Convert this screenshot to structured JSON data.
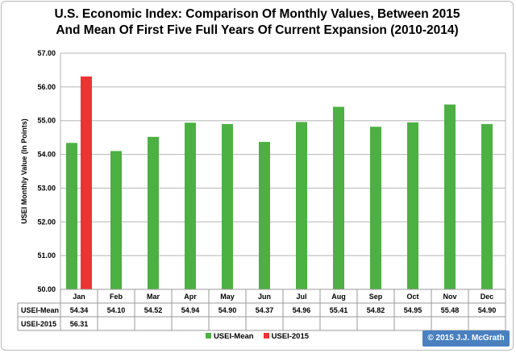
{
  "chart_data": {
    "type": "bar",
    "title_line1": "U.S. Economic Index: Comparison Of Monthly Values, Between 2015",
    "title_line2": "And Mean Of First Five Full Years Of Current Expansion (2010-2014)",
    "ylabel": "USEI Monthly Value (In Points)",
    "xlabel": "",
    "ylim": [
      50.0,
      57.0
    ],
    "yticks": [
      "57.00",
      "56.00",
      "55.00",
      "54.00",
      "53.00",
      "52.00",
      "51.00",
      "50.00"
    ],
    "grid": true,
    "legend_position": "bottom",
    "categories": [
      "Jan",
      "Feb",
      "Mar",
      "Apr",
      "May",
      "Jun",
      "Jul",
      "Aug",
      "Sep",
      "Oct",
      "Nov",
      "Dec"
    ],
    "series": [
      {
        "name": "USEI-Mean",
        "color": "#4cb043",
        "values": [
          54.34,
          54.1,
          54.52,
          54.94,
          54.9,
          54.37,
          54.96,
          55.41,
          54.82,
          54.95,
          55.48,
          54.9
        ],
        "labels": [
          "54.34",
          "54.10",
          "54.52",
          "54.94",
          "54.90",
          "54.37",
          "54.96",
          "55.41",
          "54.82",
          "54.95",
          "55.48",
          "54.90"
        ]
      },
      {
        "name": "USEI-2015",
        "color": "#ee3333",
        "values": [
          56.31,
          null,
          null,
          null,
          null,
          null,
          null,
          null,
          null,
          null,
          null,
          null
        ],
        "labels": [
          "56.31",
          "",
          "",
          "",
          "",
          "",
          "",
          "",
          "",
          "",
          "",
          ""
        ]
      }
    ]
  },
  "copyright": "© 2015 J.J. McGrath"
}
